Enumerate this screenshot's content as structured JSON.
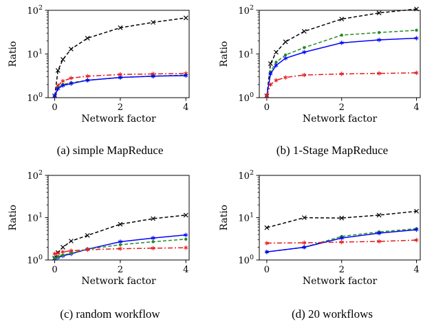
{
  "chart_data": [
    {
      "type": "line",
      "caption": "(a) simple MapReduce",
      "xlabel": "Network factor",
      "ylabel": "Ratio",
      "yscale": "log",
      "ylim": [
        1,
        100
      ],
      "xlim": [
        -0.2,
        4.1
      ],
      "xticks": [
        "0",
        "2",
        "4"
      ],
      "yticks": [
        "10^0",
        "10^1",
        "10^2"
      ],
      "x": [
        0,
        0.1,
        0.25,
        0.5,
        1,
        2,
        3,
        4
      ],
      "series": [
        {
          "values": [
            1.1,
            4.2,
            7.5,
            13,
            23,
            40,
            53,
            67
          ],
          "color": "#000000",
          "dash": "5,3",
          "marker": "x"
        },
        {
          "values": [
            1.1,
            1.9,
            2.4,
            2.8,
            3.1,
            3.4,
            3.5,
            3.6
          ],
          "color": "#e41a1c",
          "dash": "7,3,2,3",
          "marker": "star"
        },
        {
          "values": [
            1.1,
            1.7,
            2.0,
            2.2,
            2.5,
            2.9,
            3.1,
            3.3
          ],
          "color": "#228b22",
          "dash": "5,3",
          "marker": "dot"
        },
        {
          "values": [
            1.1,
            1.6,
            1.9,
            2.1,
            2.5,
            2.9,
            3.1,
            3.2
          ],
          "color": "#0000ff",
          "dash": "",
          "marker": "star"
        }
      ]
    },
    {
      "type": "line",
      "caption": "(b) 1-Stage MapReduce",
      "xlabel": "Network factor",
      "ylabel": "Ratio",
      "yscale": "log",
      "ylim": [
        1,
        100
      ],
      "xlim": [
        -0.2,
        4.1
      ],
      "xticks": [
        "0",
        "2",
        "4"
      ],
      "yticks": [
        "10^0",
        "10^1",
        "10^2"
      ],
      "x": [
        0,
        0.1,
        0.25,
        0.5,
        1,
        2,
        3,
        4
      ],
      "series": [
        {
          "values": [
            1.1,
            6,
            11,
            19,
            33,
            63,
            87,
            107
          ],
          "color": "#000000",
          "dash": "5,3",
          "marker": "x"
        },
        {
          "values": [
            1.1,
            3.9,
            6.5,
            9.5,
            14,
            27,
            31,
            35
          ],
          "color": "#228b22",
          "dash": "5,3",
          "marker": "dot"
        },
        {
          "values": [
            1.1,
            3.5,
            5.5,
            8,
            11,
            18,
            21,
            23
          ],
          "color": "#0000ff",
          "dash": "",
          "marker": "star"
        },
        {
          "values": [
            1.1,
            2.0,
            2.5,
            2.9,
            3.3,
            3.5,
            3.6,
            3.7
          ],
          "color": "#e41a1c",
          "dash": "7,3,2,3",
          "marker": "star"
        }
      ]
    },
    {
      "type": "line",
      "caption": "(c) random workflow",
      "xlabel": "Network factor",
      "ylabel": "Ratio",
      "yscale": "log",
      "ylim": [
        1,
        100
      ],
      "xlim": [
        -0.2,
        4.1
      ],
      "xticks": [
        "0",
        "2",
        "4"
      ],
      "yticks": [
        "10^0",
        "10^1",
        "10^2"
      ],
      "x": [
        0,
        0.1,
        0.25,
        0.5,
        1,
        2,
        3,
        4
      ],
      "series": [
        {
          "values": [
            1.1,
            1.5,
            2.0,
            2.8,
            3.8,
            7,
            9.5,
            11.5
          ],
          "color": "#000000",
          "dash": "5,3",
          "marker": "x"
        },
        {
          "values": [
            1.1,
            1.15,
            1.25,
            1.4,
            1.8,
            2.7,
            3.3,
            3.9
          ],
          "color": "#0000ff",
          "dash": "",
          "marker": "star"
        },
        {
          "values": [
            1.1,
            1.2,
            1.3,
            1.45,
            1.8,
            2.3,
            2.7,
            3.1
          ],
          "color": "#228b22",
          "dash": "5,3",
          "marker": "dot"
        },
        {
          "values": [
            1.4,
            1.45,
            1.55,
            1.65,
            1.75,
            1.85,
            1.9,
            1.95
          ],
          "color": "#e41a1c",
          "dash": "7,3,2,3",
          "marker": "star"
        }
      ]
    },
    {
      "type": "line",
      "caption": "(d) 20 workflows",
      "xlabel": "Network factor",
      "ylabel": "Ratio",
      "yscale": "log",
      "ylim": [
        1,
        100
      ],
      "xlim": [
        -0.2,
        4.1
      ],
      "xticks": [
        "0",
        "2",
        "4"
      ],
      "yticks": [
        "10^0",
        "10^1",
        "10^2"
      ],
      "x": [
        0,
        1,
        2,
        3,
        4
      ],
      "series": [
        {
          "values": [
            5.8,
            10,
            9.8,
            11.5,
            14.2
          ],
          "color": "#000000",
          "dash": "5,3",
          "marker": "x"
        },
        {
          "values": [
            1.55,
            2.0,
            3.6,
            4.6,
            5.5
          ],
          "color": "#228b22",
          "dash": "5,3",
          "marker": "dot"
        },
        {
          "values": [
            1.55,
            2.0,
            3.3,
            4.3,
            5.2
          ],
          "color": "#0000ff",
          "dash": "",
          "marker": "star"
        },
        {
          "values": [
            2.5,
            2.55,
            2.65,
            2.75,
            2.95
          ],
          "color": "#e41a1c",
          "dash": "7,3,2,3",
          "marker": "star"
        }
      ]
    }
  ]
}
